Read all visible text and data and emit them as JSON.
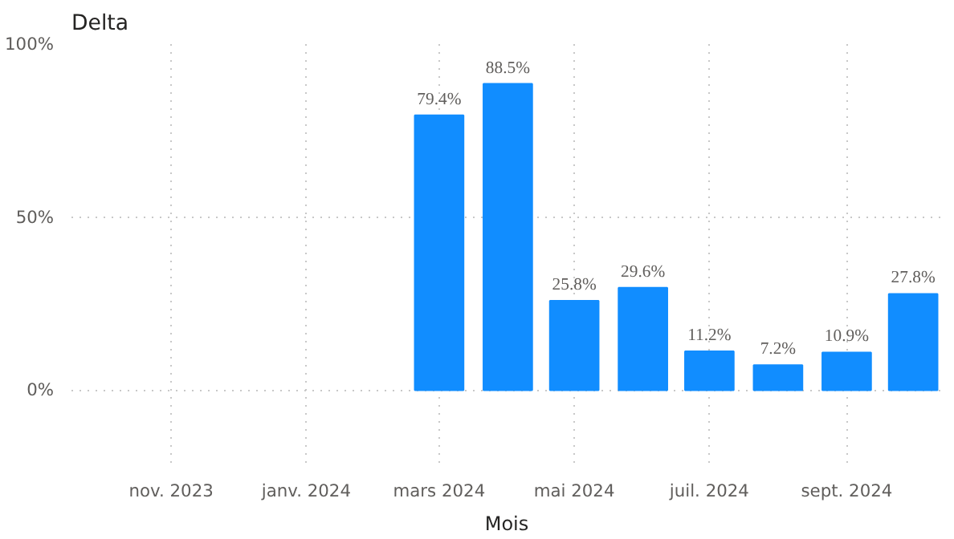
{
  "chart_data": {
    "type": "bar",
    "title": "Delta",
    "xlabel": "Mois",
    "x": [
      "2024-03",
      "2024-04",
      "2024-05",
      "2024-06",
      "2024-07",
      "2024-08",
      "2024-09",
      "2024-10"
    ],
    "values": [
      79.4,
      88.5,
      25.8,
      29.6,
      11.2,
      7.2,
      10.9,
      27.8
    ],
    "value_labels": [
      "79.4%",
      "88.5%",
      "25.8%",
      "29.6%",
      "11.2%",
      "7.2%",
      "10.9%",
      "27.8%"
    ],
    "color": "#118dff",
    "xlim": [
      "2023-09-17",
      "2024-10-14"
    ],
    "xticks": [
      {
        "value": "2023-11",
        "label": "nov. 2023"
      },
      {
        "value": "2024-01",
        "label": "janv. 2024"
      },
      {
        "value": "2024-03",
        "label": "mars 2024"
      },
      {
        "value": "2024-05",
        "label": "mai 2024"
      },
      {
        "value": "2024-07",
        "label": "juil. 2024"
      },
      {
        "value": "2024-09",
        "label": "sept. 2024"
      }
    ],
    "ylim": [
      -21,
      100
    ],
    "yticks": [
      {
        "value": 0,
        "label": "0%"
      },
      {
        "value": 50,
        "label": "50%"
      },
      {
        "value": 100,
        "label": "100%"
      }
    ],
    "grid": true
  }
}
